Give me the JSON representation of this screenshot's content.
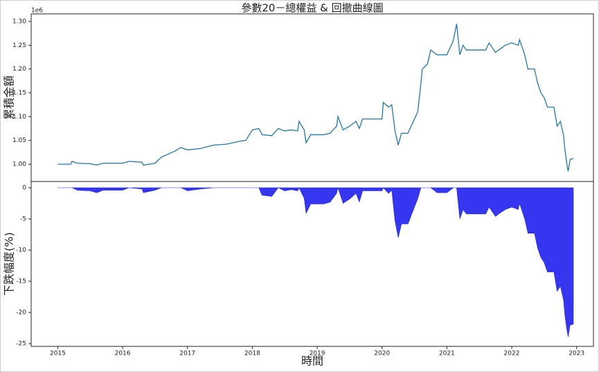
{
  "chart_data": [
    {
      "type": "line",
      "title": "參數20－總權益 & 回撤曲線圖",
      "ylabel": "累積金額",
      "offset_text": "1e6",
      "xlim": [
        2014.59,
        2023.26
      ],
      "ylim": [
        0.9636,
        1.316
      ],
      "yticks": [
        {
          "value": 1.0,
          "label": "1.00"
        },
        {
          "value": 1.05,
          "label": "1.05"
        },
        {
          "value": 1.1,
          "label": "1.10"
        },
        {
          "value": 1.15,
          "label": "1.15"
        },
        {
          "value": 1.2,
          "label": "1.20"
        },
        {
          "value": 1.25,
          "label": "1.25"
        },
        {
          "value": 1.3,
          "label": "1.30"
        }
      ],
      "x": [
        2015.0,
        2015.2,
        2015.22,
        2015.3,
        2015.5,
        2015.6,
        2015.7,
        2016.0,
        2016.1,
        2016.3,
        2016.32,
        2016.5,
        2016.6,
        2016.8,
        2016.9,
        2017.0,
        2017.2,
        2017.4,
        2017.6,
        2017.8,
        2017.9,
        2018.0,
        2018.1,
        2018.15,
        2018.3,
        2018.4,
        2018.5,
        2018.6,
        2018.7,
        2018.72,
        2018.8,
        2018.83,
        2018.9,
        2019.1,
        2019.2,
        2019.3,
        2019.32,
        2019.4,
        2019.5,
        2019.6,
        2019.65,
        2019.7,
        2020.0,
        2020.02,
        2020.1,
        2020.15,
        2020.2,
        2020.25,
        2020.3,
        2020.4,
        2020.5,
        2020.55,
        2020.6,
        2020.62,
        2020.7,
        2020.75,
        2020.85,
        2021.0,
        2021.1,
        2021.15,
        2021.2,
        2021.25,
        2021.3,
        2021.6,
        2021.65,
        2021.75,
        2021.8,
        2021.9,
        2022.0,
        2022.1,
        2022.12,
        2022.2,
        2022.25,
        2022.35,
        2022.4,
        2022.45,
        2022.5,
        2022.55,
        2022.65,
        2022.7,
        2022.75,
        2022.8,
        2022.82,
        2022.85,
        2022.87,
        2022.9,
        2022.95
      ],
      "series": [
        {
          "color": "#1f77b4",
          "values": [
            1.0,
            1.0,
            1.006,
            1.002,
            1.001,
            0.998,
            1.002,
            1.002,
            1.006,
            1.004,
            0.998,
            1.002,
            1.015,
            1.027,
            1.035,
            1.03,
            1.033,
            1.04,
            1.042,
            1.048,
            1.05,
            1.072,
            1.075,
            1.062,
            1.06,
            1.075,
            1.07,
            1.072,
            1.07,
            1.09,
            1.072,
            1.045,
            1.062,
            1.062,
            1.065,
            1.08,
            1.1,
            1.072,
            1.08,
            1.09,
            1.075,
            1.095,
            1.095,
            1.13,
            1.12,
            1.125,
            1.07,
            1.04,
            1.065,
            1.065,
            1.095,
            1.11,
            1.17,
            1.2,
            1.21,
            1.24,
            1.23,
            1.23,
            1.26,
            1.295,
            1.23,
            1.25,
            1.24,
            1.24,
            1.255,
            1.235,
            1.24,
            1.25,
            1.255,
            1.25,
            1.262,
            1.23,
            1.2,
            1.2,
            1.17,
            1.15,
            1.14,
            1.12,
            1.12,
            1.08,
            1.09,
            1.06,
            1.03,
            1.0,
            0.985,
            1.01,
            1.012
          ]
        }
      ]
    },
    {
      "type": "area",
      "ylabel": "下跌幅度(%)",
      "xlabel": "時間",
      "xlim": [
        2014.59,
        2023.26
      ],
      "ylim": [
        -25.44,
        1.0
      ],
      "xticks": [
        2015,
        2016,
        2017,
        2018,
        2019,
        2020,
        2021,
        2022,
        2023
      ],
      "yticks": [
        0,
        -5,
        -10,
        -15,
        -20,
        -25
      ],
      "x": [
        2015.0,
        2015.2,
        2015.22,
        2015.3,
        2015.5,
        2015.6,
        2015.7,
        2016.0,
        2016.1,
        2016.3,
        2016.32,
        2016.5,
        2016.6,
        2016.8,
        2016.9,
        2017.0,
        2017.2,
        2017.4,
        2017.6,
        2017.8,
        2017.9,
        2018.0,
        2018.1,
        2018.15,
        2018.3,
        2018.4,
        2018.5,
        2018.6,
        2018.7,
        2018.72,
        2018.8,
        2018.83,
        2018.9,
        2019.1,
        2019.2,
        2019.3,
        2019.32,
        2019.4,
        2019.5,
        2019.6,
        2019.65,
        2019.7,
        2020.0,
        2020.02,
        2020.1,
        2020.15,
        2020.2,
        2020.25,
        2020.3,
        2020.4,
        2020.5,
        2020.55,
        2020.6,
        2020.62,
        2020.7,
        2020.75,
        2020.85,
        2021.0,
        2021.1,
        2021.15,
        2021.2,
        2021.25,
        2021.3,
        2021.6,
        2021.65,
        2021.75,
        2021.8,
        2021.9,
        2022.0,
        2022.1,
        2022.12,
        2022.2,
        2022.25,
        2022.35,
        2022.4,
        2022.45,
        2022.5,
        2022.55,
        2022.65,
        2022.7,
        2022.75,
        2022.8,
        2022.82,
        2022.85,
        2022.87,
        2022.9,
        2022.95
      ],
      "series": [
        {
          "color": "#2020f0",
          "values": [
            0,
            0,
            0,
            -0.4,
            -0.5,
            -0.8,
            -0.4,
            -0.4,
            0,
            -0.2,
            -0.8,
            -0.4,
            0,
            0,
            0,
            -0.5,
            -0.2,
            0,
            0,
            0,
            0,
            0,
            0,
            -1.2,
            -1.4,
            0,
            -0.5,
            -0.3,
            -0.5,
            0,
            -1.7,
            -4.1,
            -2.6,
            -2.6,
            -2.3,
            -0.9,
            0,
            -2.5,
            -1.8,
            -0.9,
            -2.3,
            -0.5,
            -0.5,
            0,
            -0.9,
            -0.4,
            -5.3,
            -8.0,
            -5.8,
            -5.8,
            -3.1,
            -1.8,
            0,
            0,
            0,
            0,
            -0.8,
            -0.8,
            0,
            0,
            -5.0,
            -3.5,
            -4.2,
            -4.2,
            -3.1,
            -4.6,
            -4.2,
            -3.5,
            -3.1,
            -3.5,
            -2.5,
            -5.0,
            -7.3,
            -7.3,
            -9.7,
            -11.2,
            -12.0,
            -13.5,
            -13.5,
            -16.6,
            -15.8,
            -18.1,
            -20.5,
            -22.8,
            -23.9,
            -22.0,
            -21.9
          ]
        }
      ]
    }
  ]
}
